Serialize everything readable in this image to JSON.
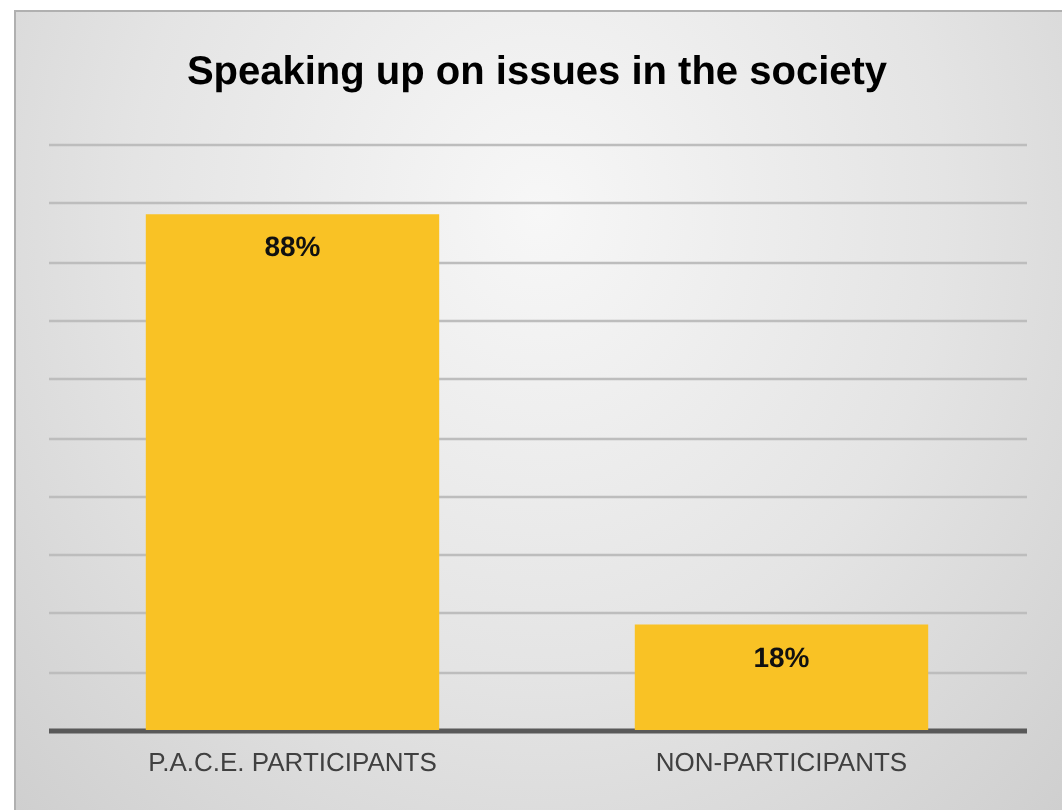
{
  "chart_data": {
    "type": "bar",
    "title": "Speaking up on issues in the society",
    "categories": [
      "P.A.C.E. PARTICIPANTS",
      "NON-PARTICIPANTS"
    ],
    "values": [
      88,
      18
    ],
    "color": "#f9c225",
    "value_labels": [
      "88%",
      "18%"
    ],
    "ylim": [
      0,
      100
    ],
    "yticks": [
      {
        "value": 0,
        "label": null
      },
      {
        "value": 10,
        "label": null
      },
      {
        "value": 20,
        "label": null
      },
      {
        "value": 30,
        "label": null
      },
      {
        "value": 40,
        "label": null
      },
      {
        "value": 50,
        "label": null
      },
      {
        "value": 60,
        "label": null
      },
      {
        "value": 70,
        "label": null
      },
      {
        "value": 80,
        "label": null
      },
      {
        "value": 90,
        "label": null
      },
      {
        "value": 100,
        "label": null
      }
    ],
    "grid": "y",
    "tick_labels": "x"
  }
}
